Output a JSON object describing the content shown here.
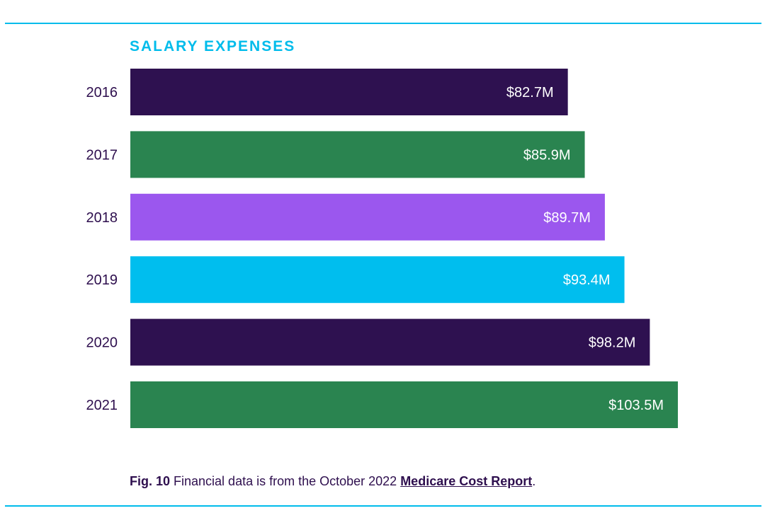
{
  "colors": {
    "rule": "#00BCEB",
    "title": "#00BCEB",
    "text": "#2E0F4E",
    "link": "#2E0F4E",
    "bar_label": "#FFFFFF"
  },
  "chart_data": {
    "type": "bar",
    "orientation": "horizontal",
    "title": "SALARY EXPENSES",
    "categories": [
      "2016",
      "2017",
      "2018",
      "2019",
      "2020",
      "2021"
    ],
    "values": [
      82.7,
      85.9,
      89.7,
      93.4,
      98.2,
      103.5
    ],
    "unit": "$M",
    "value_labels": [
      "$82.7M",
      "$85.9M",
      "$89.7M",
      "$93.4M",
      "$98.2M",
      "$103.5M"
    ],
    "bar_colors": [
      "#2E1150",
      "#2A8450",
      "#9B57EE",
      "#00BEEE",
      "#2E1150",
      "#2A8450"
    ],
    "xlim": [
      0,
      103.5
    ],
    "xlabel": "",
    "ylabel": "",
    "grid": false
  },
  "caption": {
    "fig_label": "Fig. 10",
    "text": " Financial data is from the October 2022 ",
    "link_text": "Medicare Cost Report",
    "end": "."
  }
}
